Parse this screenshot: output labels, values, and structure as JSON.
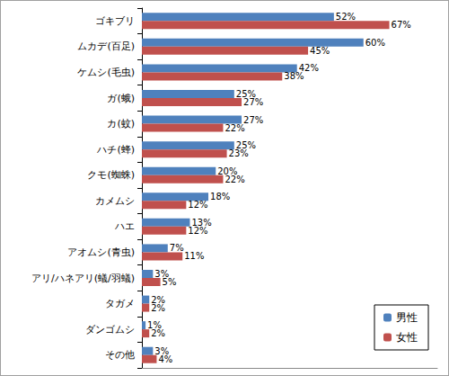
{
  "chart_data": {
    "type": "bar",
    "orientation": "horizontal",
    "categories": [
      "ゴキブリ",
      "ムカデ(百足)",
      "ケムシ(毛虫)",
      "ガ(蛾)",
      "カ(蚊)",
      "ハチ(蜂)",
      "クモ(蜘蛛)",
      "カメムシ",
      "ハエ",
      "アオムシ(青虫)",
      "アリ/ハネアリ(蟻/羽蟻)",
      "タガメ",
      "ダンゴムシ",
      "その他"
    ],
    "series": [
      {
        "name": "男性",
        "color": "#4f81bd",
        "values": [
          52,
          60,
          42,
          25,
          27,
          25,
          20,
          18,
          13,
          7,
          3,
          2,
          1,
          3
        ],
        "value_labels": [
          "52%",
          "60%",
          "42%",
          "25%",
          "27%",
          "25%",
          "20%",
          "18%",
          "13%",
          "7%",
          "3%",
          "2%",
          "1%",
          "3%"
        ]
      },
      {
        "name": "女性",
        "color": "#c0504d",
        "values": [
          67,
          45,
          38,
          27,
          22,
          23,
          22,
          12,
          12,
          11,
          5,
          2,
          2,
          4
        ],
        "value_labels": [
          "67%",
          "45%",
          "38%",
          "27%",
          "22%",
          "23%",
          "22%",
          "12%",
          "12%",
          "11%",
          "5%",
          "2%",
          "2%",
          "4%"
        ]
      }
    ],
    "xlim": [
      0,
      80
    ],
    "grid": false,
    "legend": "lower right",
    "data_labels": true,
    "tick_labels": "y"
  }
}
